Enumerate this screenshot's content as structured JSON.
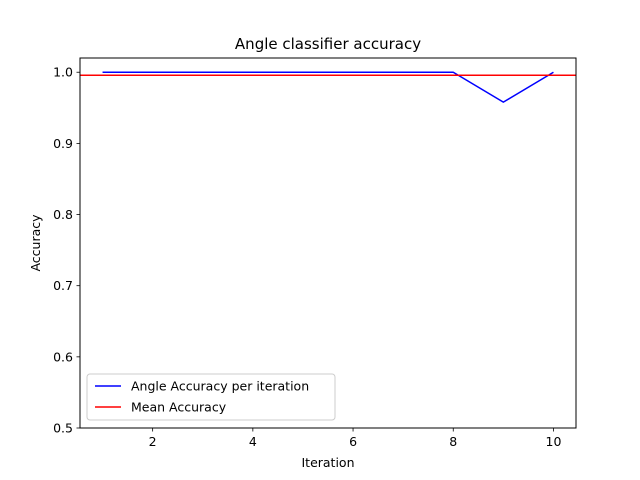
{
  "chart_data": {
    "type": "line",
    "title": "Angle classifier accuracy",
    "xlabel": "Iteration",
    "ylabel": "Accuracy",
    "x": [
      1,
      2,
      3,
      4,
      5,
      6,
      7,
      8,
      9,
      10
    ],
    "series": [
      {
        "name": "Angle Accuracy per iteration",
        "color": "#0000ff",
        "values": [
          1.0,
          1.0,
          1.0,
          1.0,
          1.0,
          1.0,
          1.0,
          1.0,
          0.958,
          1.0
        ]
      }
    ],
    "hlines": [
      {
        "name": "Mean Accuracy",
        "color": "#ff0000",
        "value": 0.9958
      }
    ],
    "xlim": [
      0.55,
      10.45
    ],
    "ylim": [
      0.5,
      1.02
    ],
    "xticks": [
      2,
      4,
      6,
      8,
      10
    ],
    "xtick_labels": [
      "2",
      "4",
      "6",
      "8",
      "10"
    ],
    "yticks": [
      0.5,
      0.6,
      0.7,
      0.8,
      0.9,
      1.0
    ],
    "ytick_labels": [
      "0.5",
      "0.6",
      "0.7",
      "0.8",
      "0.9",
      "1.0"
    ],
    "grid": false,
    "legend_position": "lower-left"
  }
}
